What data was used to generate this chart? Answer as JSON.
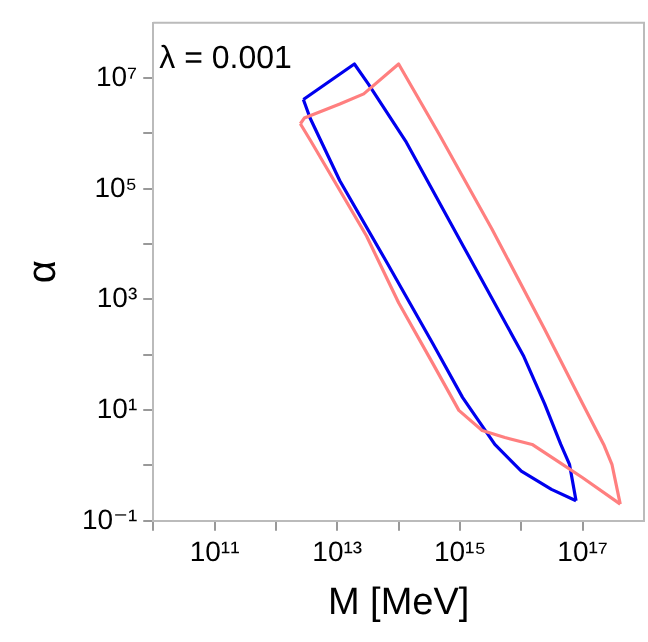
{
  "chart_data": {
    "type": "line",
    "xlabel": "M [MeV]",
    "ylabel": "α",
    "log": "xy",
    "grid": false,
    "legend": false,
    "marker": "none",
    "line_style": "solid",
    "annotations": [
      "λ = 0.001"
    ],
    "xlim": [
      10000000000.0,
      1e+18
    ],
    "ylim": [
      0.1,
      100000000.0
    ],
    "xticks": [
      {
        "value": 10000000000.0,
        "label": null
      },
      {
        "value": 100000000000.0,
        "label": "10¹¹"
      },
      {
        "value": 1000000000000.0,
        "label": null
      },
      {
        "value": 10000000000000.0,
        "label": "10¹³"
      },
      {
        "value": 100000000000000.0,
        "label": null
      },
      {
        "value": 1000000000000000.0,
        "label": "10¹⁵"
      },
      {
        "value": 1e+16,
        "label": null
      },
      {
        "value": 1e+17,
        "label": "10¹⁷"
      }
    ],
    "yticks": [
      {
        "value": 0.1,
        "label": "10⁻¹"
      },
      {
        "value": 1,
        "label": null
      },
      {
        "value": 10,
        "label": "10¹"
      },
      {
        "value": 100,
        "label": null
      },
      {
        "value": 1000,
        "label": "10³"
      },
      {
        "value": 10000,
        "label": null
      },
      {
        "value": 100000,
        "label": "10⁵"
      },
      {
        "value": 1000000,
        "label": null
      },
      {
        "value": 10000000,
        "label": "10⁷"
      }
    ],
    "series": [
      {
        "color": "#ff7f7f",
        "x": [
          2500000000000.0,
          2900000000000.0,
          11000000000000.0,
          27000000000000.0,
          100000000000000.0,
          460000000000000.0,
          3300000000000000.0,
          2.4e+16,
          1e+17,
          2.2e+17,
          3e+17,
          4.1e+17
        ],
        "values": [
          1500000.0,
          1900000.0,
          3400000.0,
          5200000.0,
          18000000.0,
          960000.0,
          19000.0,
          290,
          13,
          2.4,
          1.05,
          0.2
        ]
      },
      {
        "color": "#ff7f7f",
        "x": [
          2500000000000.0,
          3700000000000.0,
          8900000000000.0,
          30000000000000.0,
          100000000000000.0,
          360000000000000.0,
          960000000000000.0,
          2300000000000000.0,
          5400000000000000.0,
          1.5e+16,
          3.9e+16,
          1e+17,
          4.1e+17
        ],
        "values": [
          1500000.0,
          730000.0,
          140000.0,
          14000.0,
          870,
          70,
          9.9,
          4.3,
          3.2,
          2.4,
          1.2,
          0.6,
          0.2
        ]
      },
      {
        "color": "#0000ee",
        "x": [
          2800000000000.0,
          19000000000000.0,
          32000000000000.0,
          130000000000000.0,
          1200000000000000.0,
          1.1e+16,
          2.4e+16,
          4.4e+16,
          6.1e+16,
          7.8e+16
        ],
        "values": [
          4100000.0,
          18000000.0,
          7900000.0,
          730000.0,
          8200.0,
          93,
          13,
          2.4,
          1.05,
          0.23
        ]
      },
      {
        "color": "#0000ee",
        "x": [
          2800000000000.0,
          3600000000000.0,
          11000000000000.0,
          64000000000000.0,
          360000000000000.0,
          1100000000000000.0,
          3700000000000000.0,
          1e+16,
          3.1e+16,
          7.8e+16
        ],
        "values": [
          4100000.0,
          1900000.0,
          140000.0,
          4700.0,
          160,
          17,
          2.4,
          0.79,
          0.37,
          0.23
        ]
      }
    ]
  }
}
